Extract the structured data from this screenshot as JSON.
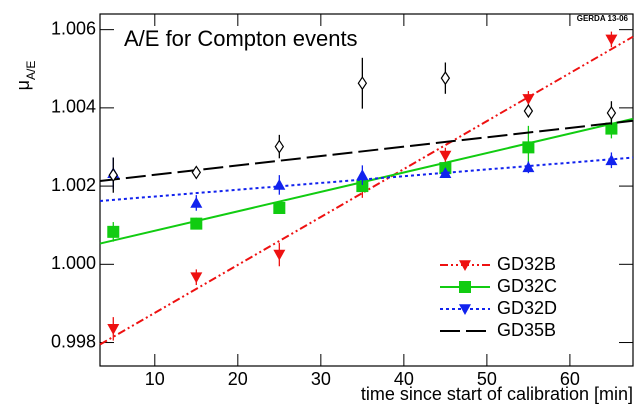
{
  "chart_data": {
    "type": "scatter",
    "title": "A/E for Compton events",
    "corner_label": "GERDA 13-06",
    "x_label": "time since start of calibration [min]",
    "y_label": "μ",
    "y_label_sub": "A/E",
    "xlim": [
      3.4,
      67.6
    ],
    "xticks": [
      10,
      20,
      30,
      40,
      50,
      60
    ],
    "ylim": [
      0.9974,
      1.0064
    ],
    "yticks": [
      {
        "value": 0.998,
        "label": "0.998"
      },
      {
        "value": 1.0,
        "label": "1.000"
      },
      {
        "value": 1.002,
        "label": "1.002"
      },
      {
        "value": 1.004,
        "label": "1.004"
      },
      {
        "value": 1.006,
        "label": "1.006"
      }
    ],
    "x": [
      5,
      15,
      25,
      35,
      45,
      55,
      65
    ],
    "legend": "lower right",
    "series": [
      {
        "name": "GD32B",
        "color": "#ee1111",
        "marker": "triangle-down",
        "dash": "8 3 2 3 2 3",
        "values": [
          0.99835,
          0.99967,
          1.00025,
          1.002,
          1.00278,
          1.00423,
          1.00575
        ],
        "errors": [
          0.0003,
          0.0002,
          0.0003,
          0.0003,
          0.0002,
          0.0002,
          0.0002
        ],
        "fit": {
          "x": [
            3.4,
            67.6
          ],
          "y": [
            0.99795,
            1.00582
          ]
        }
      },
      {
        "name": "GD32C",
        "color": "#11cc11",
        "marker": "square",
        "dash": "none",
        "values": [
          1.00083,
          1.00104,
          1.00144,
          1.002,
          1.00246,
          1.00299,
          1.00347
        ],
        "errors": [
          0.00025,
          0.00015,
          0.00015,
          0.00015,
          0.00015,
          0.00055,
          0.00025
        ],
        "fit": {
          "x": [
            3.4,
            67.6
          ],
          "y": [
            1.00053,
            1.00372
          ]
        }
      },
      {
        "name": "GD32D",
        "color": "#1122ee",
        "marker": "triangle-up",
        "dash": "3 3",
        "values": [
          1.00233,
          1.00157,
          1.00203,
          1.00228,
          1.00233,
          1.00248,
          1.00266
        ],
        "errors": [
          0.0004,
          0.0002,
          0.00025,
          0.00025,
          0.0001,
          0.00015,
          0.0002
        ],
        "fit": {
          "x": [
            3.4,
            67.6
          ],
          "y": [
            1.00162,
            1.00273
          ]
        }
      },
      {
        "name": "GD35B",
        "color": "#000000",
        "marker": "diamond-open",
        "dash": "20 6",
        "values": [
          1.00228,
          1.00235,
          1.00301,
          1.00463,
          1.00476,
          1.00392,
          1.00387
        ],
        "errors": [
          0.00045,
          0.00015,
          0.0003,
          0.00065,
          0.0004,
          0.00015,
          0.0003
        ],
        "fit": {
          "x": [
            3.4,
            67.6
          ],
          "y": [
            1.00213,
            1.00367
          ]
        }
      }
    ]
  }
}
